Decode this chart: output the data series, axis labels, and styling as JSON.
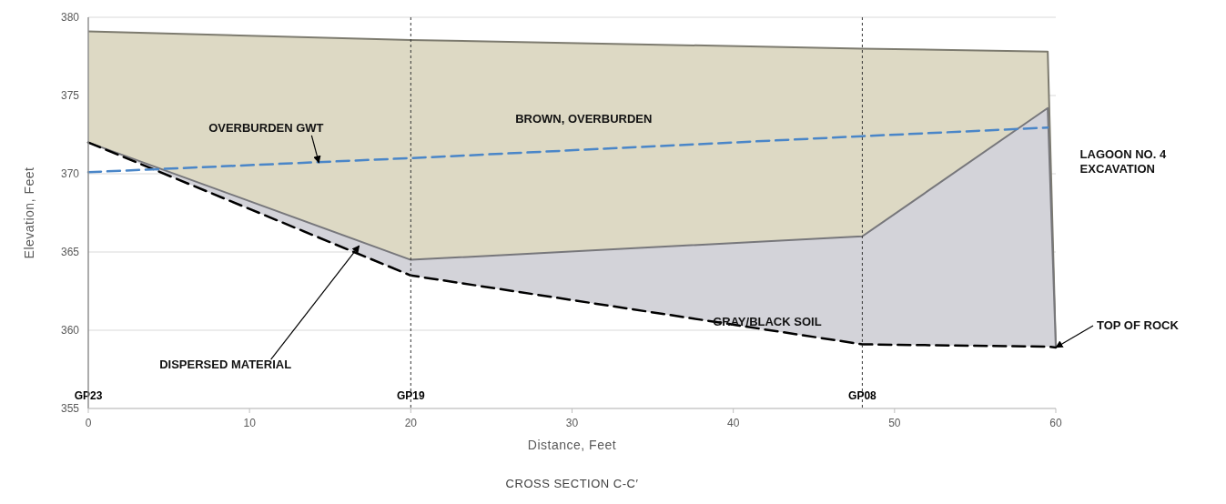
{
  "chart_data": {
    "type": "line",
    "title": "CROSS SECTION C-C′",
    "xlabel": "Distance, Feet",
    "ylabel": "Elevation, Feet",
    "x": [
      0,
      20,
      48,
      59.5,
      60
    ],
    "series": [
      {
        "type": "area",
        "color": "#ddd9c4",
        "line_style": "solid",
        "values": [
          379.1,
          378.55,
          378.0,
          377.8,
          358.9
        ]
      },
      {
        "type": "area",
        "color": "#d3d3d9",
        "line_style": "solid",
        "values": [
          372.0,
          364.5,
          366.0,
          374.2,
          358.9
        ]
      },
      {
        "type": "line",
        "color": "#000000",
        "values": [
          372.0,
          363.5,
          359.1,
          358.95,
          358.9
        ],
        "line_style": "dashed"
      },
      {
        "type": "line",
        "color": "#4a86c8",
        "x": [
          0,
          20,
          48,
          59.5
        ],
        "values": [
          370.1,
          371.0,
          372.4,
          372.95
        ],
        "line_style": "dashed"
      }
    ],
    "xlim": [
      0,
      60
    ],
    "ylim": [
      355,
      380
    ],
    "xticks": [
      0,
      10,
      20,
      30,
      40,
      50,
      60
    ],
    "yticks": [
      355,
      360,
      365,
      370,
      375,
      380
    ],
    "grid": "y",
    "marker": "none",
    "ref_lines": [
      {
        "axis": "x",
        "value": 0,
        "label": "GP23"
      },
      {
        "axis": "x",
        "value": 20,
        "label": "GP19",
        "line_style": "dotted"
      },
      {
        "axis": "x",
        "value": 48,
        "label": "GP08",
        "line_style": "dotted"
      }
    ],
    "annotations": [
      {
        "text": "OVERBURDEN GWT",
        "x": 14.3,
        "y": 370.7
      },
      "BROWN, OVERBURDEN",
      {
        "text": "GRAY/BLACK SOIL",
        "x": 42.1,
        "y": 360.3
      },
      {
        "text": "DISPERSED MATERIAL",
        "x": 16.8,
        "y": 365.4
      },
      {
        "text": "TOP OF ROCK",
        "x": 60,
        "y": 358.9
      },
      "LAGOON NO. 4 EXCAVATION"
    ]
  }
}
